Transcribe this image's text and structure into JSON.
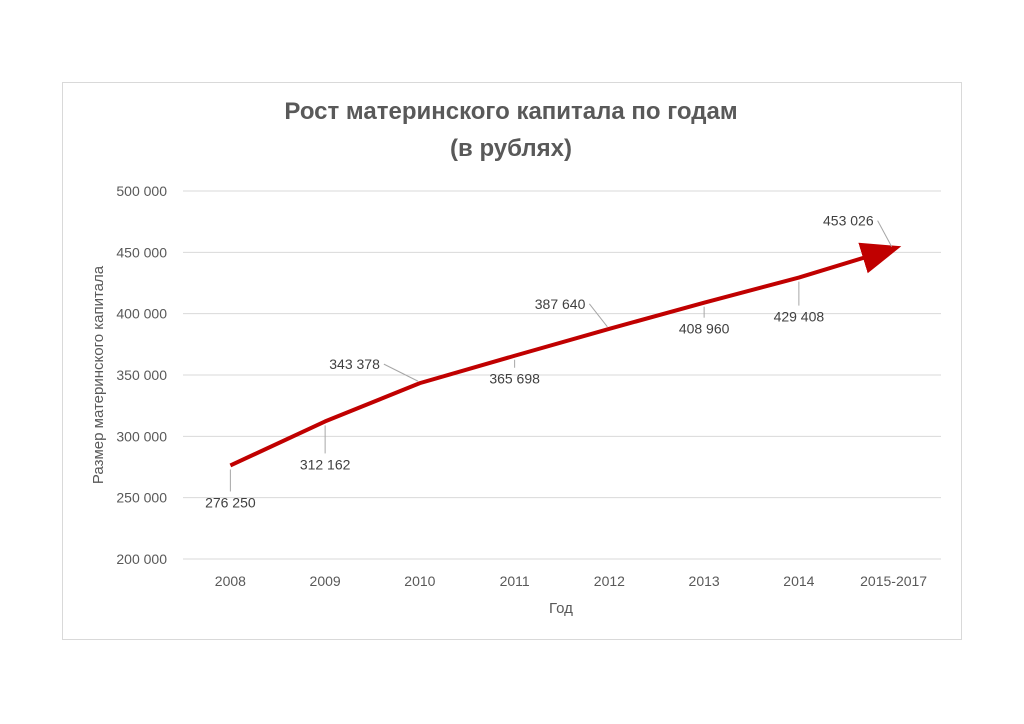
{
  "chart_data": {
    "type": "line",
    "title_line1": "Рост материнского капитала по годам",
    "title_line2": "(в рублях)",
    "xlabel": "Год",
    "ylabel": "Размер материнского капитала",
    "categories": [
      "2008",
      "2009",
      "2010",
      "2011",
      "2012",
      "2013",
      "2014",
      "2015-2017"
    ],
    "values": [
      276250,
      312162,
      343378,
      365698,
      387640,
      408960,
      429408,
      453026
    ],
    "data_labels": [
      "276 250",
      "312 162",
      "343 378",
      "365 698",
      "387 640",
      "408 960",
      "429 408",
      "453 026"
    ],
    "y_ticks": [
      "200 000",
      "250 000",
      "300 000",
      "350 000",
      "400 000",
      "450 000",
      "500 000"
    ],
    "ylim": [
      200000,
      500000
    ],
    "grid": true,
    "line_color": "#c00000",
    "grid_color": "#d9d9d9",
    "text_color": "#595959"
  }
}
